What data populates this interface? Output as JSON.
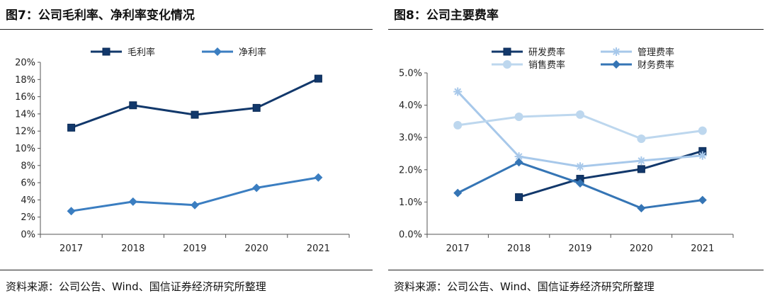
{
  "left_panel": {
    "title": "图7：公司毛利率、净利率变化情况",
    "source": "资料来源：公司公告、Wind、国信证券经济研究所整理"
  },
  "right_panel": {
    "title": "图8：公司主要费率",
    "source": "资料来源：公司公告、Wind、国信证券经济研究所整理"
  },
  "chart_data": [
    {
      "type": "line",
      "title": "图7：公司毛利率、净利率变化情况",
      "categories": [
        "2017",
        "2018",
        "2019",
        "2020",
        "2021"
      ],
      "ylim": [
        0,
        20
      ],
      "yticks": [
        0,
        2,
        4,
        6,
        8,
        10,
        12,
        14,
        16,
        18,
        20
      ],
      "ytick_labels": [
        "0%",
        "2%",
        "4%",
        "6%",
        "8%",
        "10%",
        "12%",
        "14%",
        "16%",
        "18%",
        "20%"
      ],
      "grid": false,
      "legend_position": "top",
      "series": [
        {
          "name": "毛利率",
          "marker": "square",
          "color": "#12386B",
          "values": [
            12.4,
            15.0,
            13.9,
            14.7,
            18.1
          ]
        },
        {
          "name": "净利率",
          "marker": "diamond",
          "color": "#3B7EC1",
          "values": [
            2.7,
            3.8,
            3.4,
            5.4,
            6.6
          ]
        }
      ]
    },
    {
      "type": "line",
      "title": "图8：公司主要费率",
      "categories": [
        "2017",
        "2018",
        "2019",
        "2020",
        "2021"
      ],
      "ylim": [
        0,
        5
      ],
      "yticks": [
        0,
        1,
        2,
        3,
        4,
        5
      ],
      "ytick_labels": [
        "0.0%",
        "1.0%",
        "2.0%",
        "3.0%",
        "4.0%",
        "5.0%"
      ],
      "grid": false,
      "legend_position": "top",
      "series": [
        {
          "name": "研发费率",
          "marker": "square",
          "color": "#12386B",
          "values": [
            null,
            1.15,
            1.72,
            2.02,
            2.58
          ]
        },
        {
          "name": "管理费率",
          "marker": "star",
          "color": "#A7C8EA",
          "values": [
            4.42,
            2.41,
            2.1,
            2.28,
            2.44
          ]
        },
        {
          "name": "销售费率",
          "marker": "circle",
          "color": "#BDD7EE",
          "values": [
            3.38,
            3.64,
            3.71,
            2.96,
            3.21
          ]
        },
        {
          "name": "财务费率",
          "marker": "diamond",
          "color": "#3575B5",
          "values": [
            1.28,
            2.23,
            1.58,
            0.81,
            1.06
          ]
        }
      ]
    }
  ]
}
